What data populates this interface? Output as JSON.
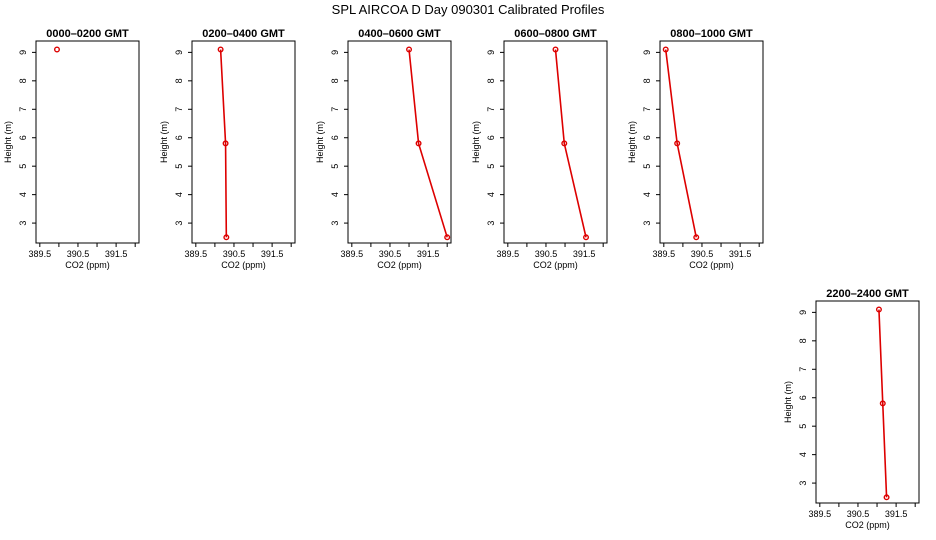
{
  "figure": {
    "title": "SPL AIRCOA D  Day 090301  Calibrated Profiles"
  },
  "colors": {
    "series": "#dd0000",
    "axes": "#000000",
    "background": "#ffffff"
  },
  "chart_data": [
    {
      "type": "line",
      "title": "0000–0200 GMT",
      "xlabel": "CO2 (ppm)",
      "ylabel": "Height (m)",
      "xlim": [
        389.4,
        392.1
      ],
      "ylim": [
        2.3,
        9.4
      ],
      "xticks": [
        "389.5",
        "390.5",
        "391.5"
      ],
      "yticks": [
        "3",
        "4",
        "5",
        "6",
        "7",
        "8",
        "9"
      ],
      "grid": false,
      "x": [
        389.95
      ],
      "y": [
        9.1
      ]
    },
    {
      "type": "line",
      "title": "0200–0400 GMT",
      "xlabel": "CO2 (ppm)",
      "ylabel": "Height (m)",
      "xlim": [
        389.4,
        392.1
      ],
      "ylim": [
        2.3,
        9.4
      ],
      "xticks": [
        "389.5",
        "390.5",
        "391.5"
      ],
      "yticks": [
        "3",
        "4",
        "5",
        "6",
        "7",
        "8",
        "9"
      ],
      "grid": false,
      "x": [
        390.15,
        390.28,
        390.3
      ],
      "y": [
        9.1,
        5.8,
        2.5
      ]
    },
    {
      "type": "line",
      "title": "0400–0600 GMT",
      "xlabel": "CO2 (ppm)",
      "ylabel": "Height (m)",
      "xlim": [
        389.4,
        392.1
      ],
      "ylim": [
        2.3,
        9.4
      ],
      "xticks": [
        "389.5",
        "390.5",
        "391.5"
      ],
      "yticks": [
        "3",
        "4",
        "5",
        "6",
        "7",
        "8",
        "9"
      ],
      "grid": false,
      "x": [
        391.0,
        391.25,
        392.0
      ],
      "y": [
        9.1,
        5.8,
        2.5
      ]
    },
    {
      "type": "line",
      "title": "0600–0800 GMT",
      "xlabel": "CO2 (ppm)",
      "ylabel": "Height (m)",
      "xlim": [
        389.4,
        392.1
      ],
      "ylim": [
        2.3,
        9.4
      ],
      "xticks": [
        "389.5",
        "390.5",
        "391.5"
      ],
      "yticks": [
        "3",
        "4",
        "5",
        "6",
        "7",
        "8",
        "9"
      ],
      "grid": false,
      "x": [
        390.75,
        390.98,
        391.55
      ],
      "y": [
        9.1,
        5.8,
        2.5
      ]
    },
    {
      "type": "line",
      "title": "0800–1000 GMT",
      "xlabel": "CO2 (ppm)",
      "ylabel": "Height (m)",
      "xlim": [
        389.4,
        392.1
      ],
      "ylim": [
        2.3,
        9.4
      ],
      "xticks": [
        "389.5",
        "390.5",
        "391.5"
      ],
      "yticks": [
        "3",
        "4",
        "5",
        "6",
        "7",
        "8",
        "9"
      ],
      "grid": false,
      "x": [
        389.55,
        389.85,
        390.35
      ],
      "y": [
        9.1,
        5.8,
        2.5
      ]
    },
    {
      "type": "line",
      "title": "2200–2400 GMT",
      "xlabel": "CO2 (ppm)",
      "ylabel": "Height (m)",
      "xlim": [
        389.4,
        392.1
      ],
      "ylim": [
        2.3,
        9.4
      ],
      "xticks": [
        "389.5",
        "390.5",
        "391.5"
      ],
      "yticks": [
        "3",
        "4",
        "5",
        "6",
        "7",
        "8",
        "9"
      ],
      "grid": false,
      "x": [
        391.05,
        391.15,
        391.25
      ],
      "y": [
        9.1,
        5.8,
        2.5
      ]
    }
  ]
}
